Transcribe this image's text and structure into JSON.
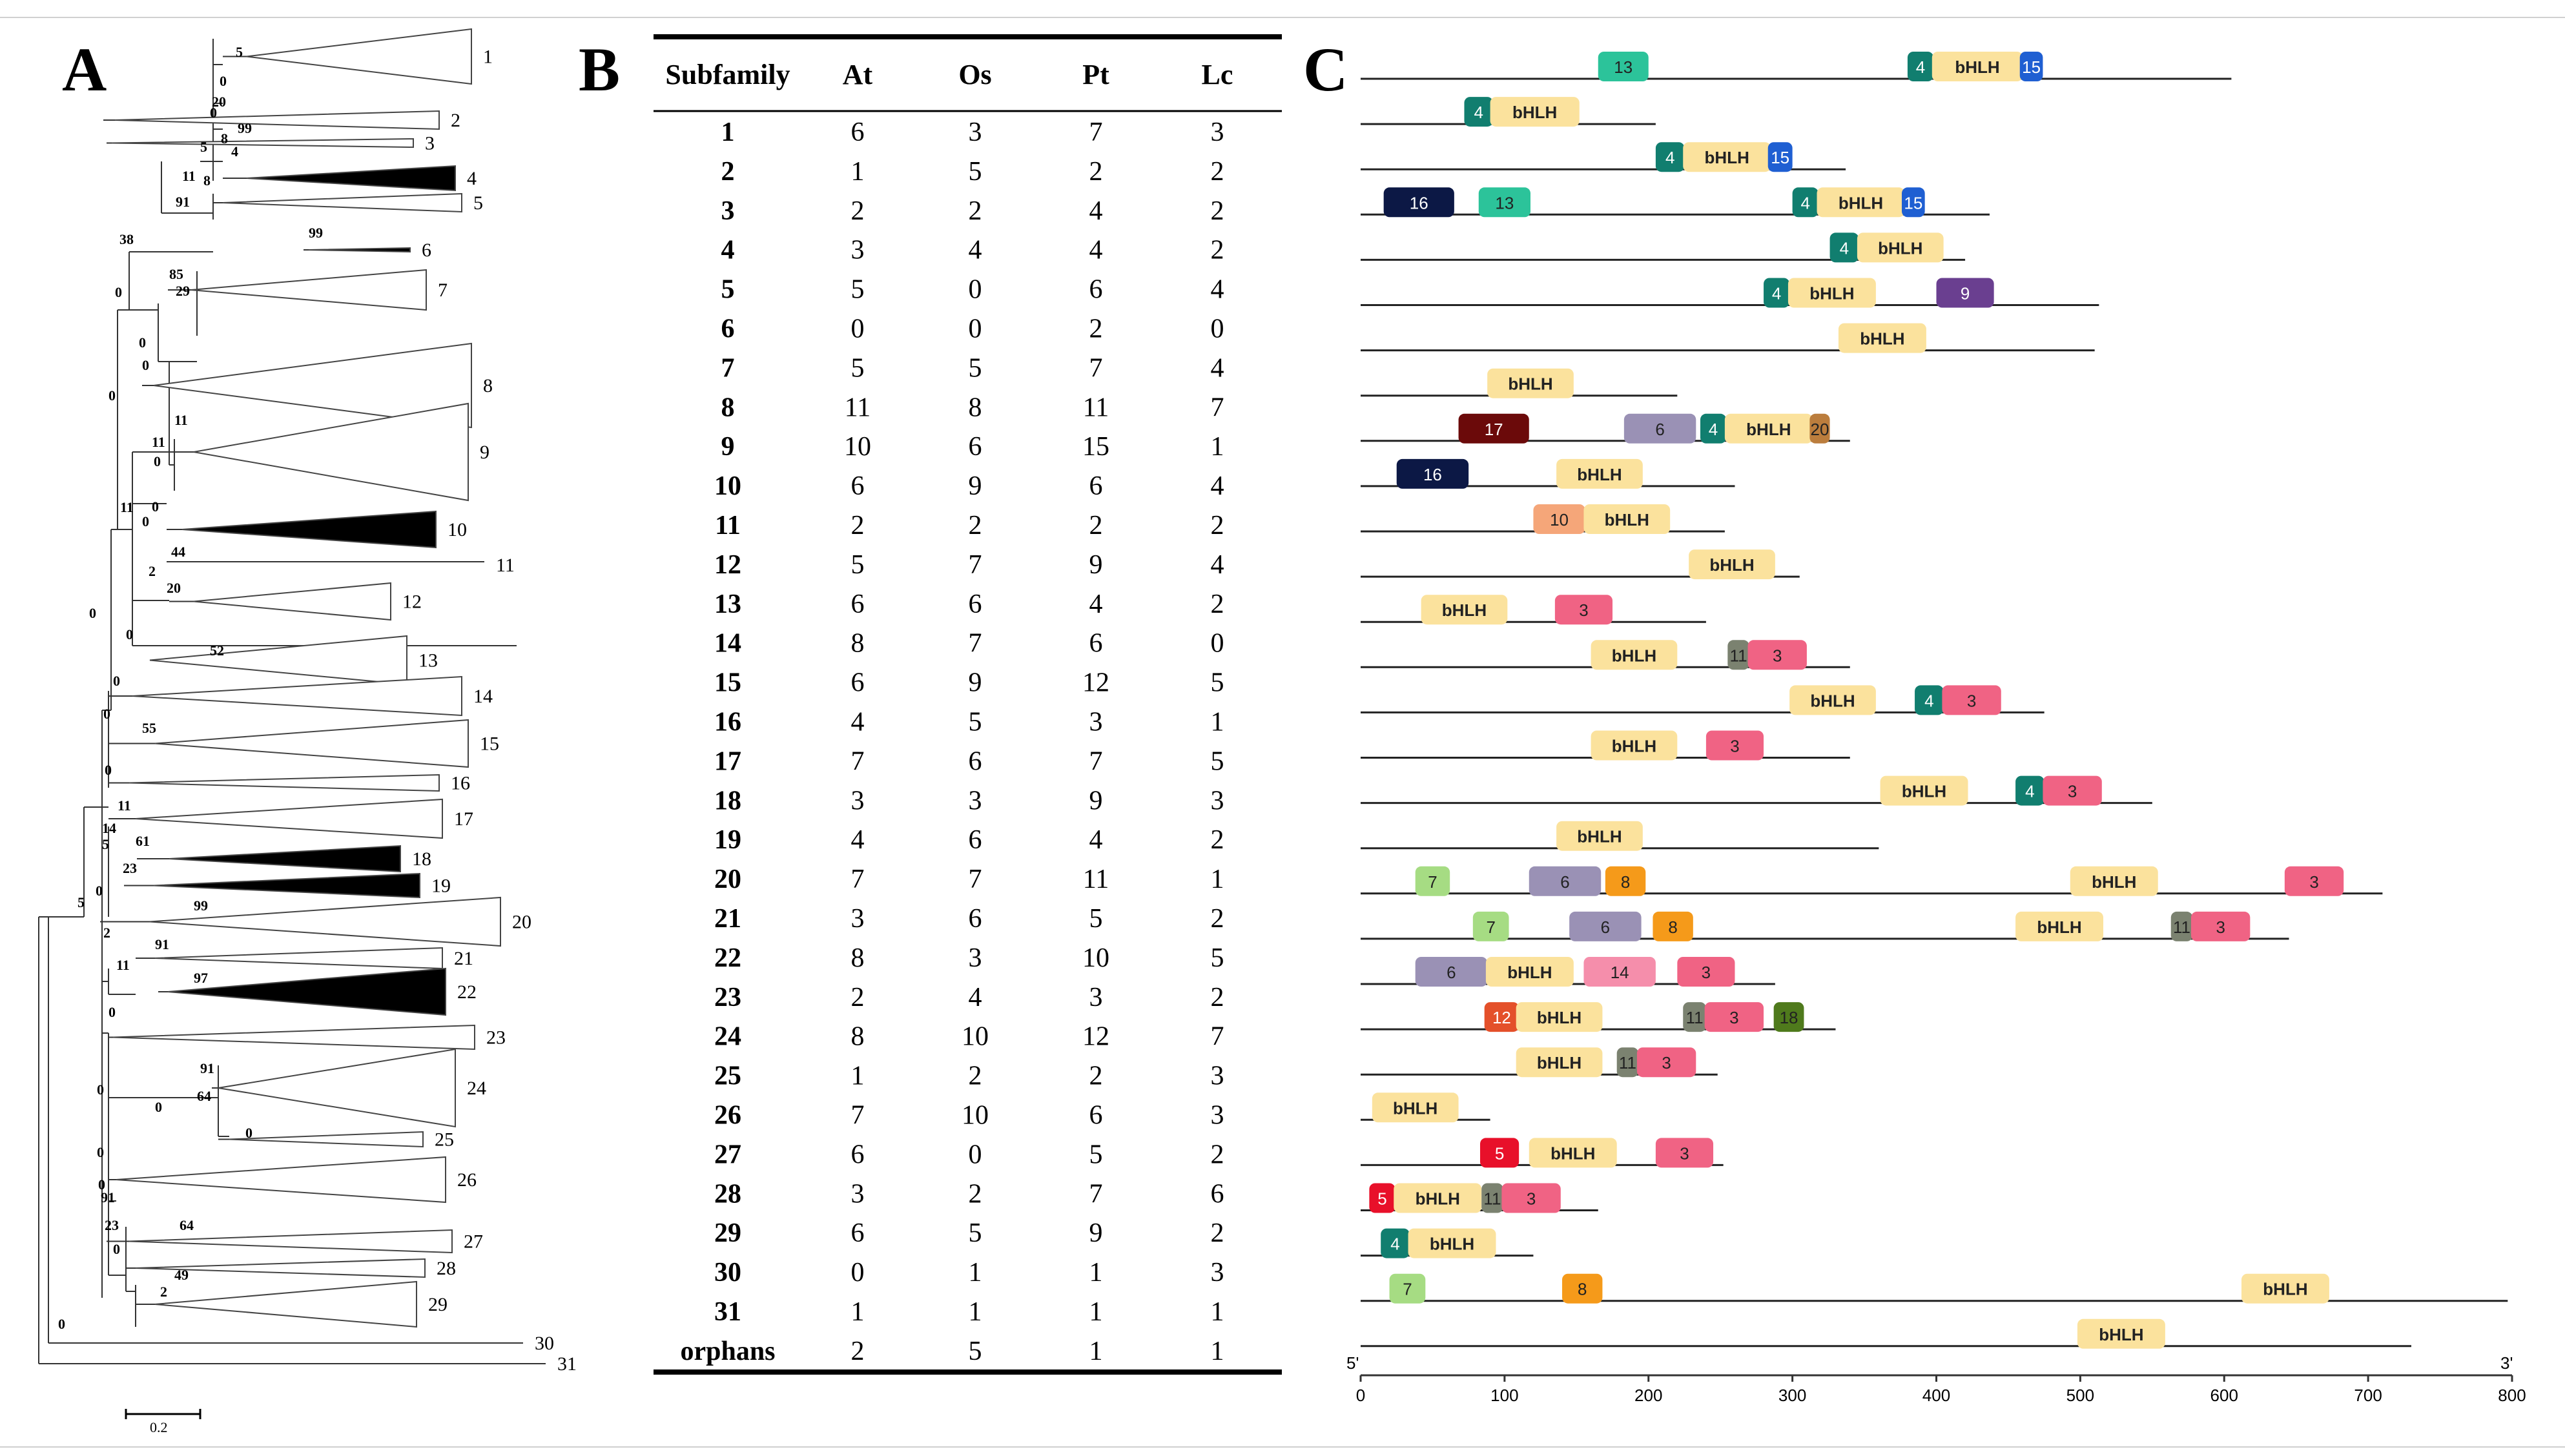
{
  "panels": {
    "a": "A",
    "b": "B",
    "c": "C"
  },
  "tree": {
    "scale_label": "0.2",
    "clades": [
      {
        "label": "1",
        "shape": "triangle",
        "filled": false
      },
      {
        "label": "2",
        "shape": "triangle",
        "filled": false
      },
      {
        "label": "3",
        "shape": "triangle",
        "filled": false
      },
      {
        "label": "4",
        "shape": "triangle",
        "filled": true
      },
      {
        "label": "5",
        "shape": "triangle",
        "filled": false
      },
      {
        "label": "6",
        "shape": "triangle",
        "filled": true
      },
      {
        "label": "7",
        "shape": "triangle",
        "filled": false
      },
      {
        "label": "8",
        "shape": "triangle",
        "filled": false
      },
      {
        "label": "9",
        "shape": "triangle",
        "filled": false
      },
      {
        "label": "10",
        "shape": "triangle",
        "filled": true
      },
      {
        "label": "11",
        "shape": "line",
        "filled": false
      },
      {
        "label": "12",
        "shape": "triangle",
        "filled": false
      },
      {
        "label": "13",
        "shape": "triangle",
        "filled": false
      },
      {
        "label": "14",
        "shape": "triangle",
        "filled": false
      },
      {
        "label": "15",
        "shape": "triangle",
        "filled": false
      },
      {
        "label": "16",
        "shape": "triangle",
        "filled": false
      },
      {
        "label": "17",
        "shape": "triangle",
        "filled": false
      },
      {
        "label": "18",
        "shape": "triangle",
        "filled": true
      },
      {
        "label": "19",
        "shape": "triangle",
        "filled": true
      },
      {
        "label": "20",
        "shape": "triangle",
        "filled": false
      },
      {
        "label": "21",
        "shape": "triangle",
        "filled": false
      },
      {
        "label": "22",
        "shape": "triangle",
        "filled": true
      },
      {
        "label": "23",
        "shape": "triangle",
        "filled": false
      },
      {
        "label": "24",
        "shape": "triangle",
        "filled": false
      },
      {
        "label": "25",
        "shape": "triangle",
        "filled": false
      },
      {
        "label": "26",
        "shape": "triangle",
        "filled": false
      },
      {
        "label": "27",
        "shape": "triangle",
        "filled": false
      },
      {
        "label": "28",
        "shape": "triangle",
        "filled": false
      },
      {
        "label": "29",
        "shape": "triangle",
        "filled": false
      },
      {
        "label": "30",
        "shape": "line",
        "filled": false
      },
      {
        "label": "31",
        "shape": "line",
        "filled": false
      }
    ],
    "bootstrap_values": [
      "5",
      "0",
      "20",
      "0",
      "99",
      "5",
      "8",
      "4",
      "11",
      "8",
      "91",
      "99",
      "38",
      "85",
      "29",
      "0",
      "0",
      "0",
      "0",
      "11",
      "11",
      "0",
      "0",
      "11",
      "0",
      "44",
      "2",
      "20",
      "0",
      "0",
      "52",
      "0",
      "0",
      "55",
      "0",
      "11",
      "14",
      "5",
      "61",
      "23",
      "0",
      "99",
      "2",
      "91",
      "11",
      "97",
      "5",
      "0",
      "0",
      "91",
      "64",
      "0",
      "0",
      "0",
      "0",
      "91",
      "23",
      "64",
      "0",
      "49",
      "2",
      "0"
    ]
  },
  "table": {
    "headers": [
      "Subfamily",
      "At",
      "Os",
      "Pt",
      "Lc"
    ],
    "rows": [
      [
        "1",
        "6",
        "3",
        "7",
        "3"
      ],
      [
        "2",
        "1",
        "5",
        "2",
        "2"
      ],
      [
        "3",
        "2",
        "2",
        "4",
        "2"
      ],
      [
        "4",
        "3",
        "4",
        "4",
        "2"
      ],
      [
        "5",
        "5",
        "0",
        "6",
        "4"
      ],
      [
        "6",
        "0",
        "0",
        "2",
        "0"
      ],
      [
        "7",
        "5",
        "5",
        "7",
        "4"
      ],
      [
        "8",
        "11",
        "8",
        "11",
        "7"
      ],
      [
        "9",
        "10",
        "6",
        "15",
        "1"
      ],
      [
        "10",
        "6",
        "9",
        "6",
        "4"
      ],
      [
        "11",
        "2",
        "2",
        "2",
        "2"
      ],
      [
        "12",
        "5",
        "7",
        "9",
        "4"
      ],
      [
        "13",
        "6",
        "6",
        "4",
        "2"
      ],
      [
        "14",
        "8",
        "7",
        "6",
        "0"
      ],
      [
        "15",
        "6",
        "9",
        "12",
        "5"
      ],
      [
        "16",
        "4",
        "5",
        "3",
        "1"
      ],
      [
        "17",
        "7",
        "6",
        "7",
        "5"
      ],
      [
        "18",
        "3",
        "3",
        "9",
        "3"
      ],
      [
        "19",
        "4",
        "6",
        "4",
        "2"
      ],
      [
        "20",
        "7",
        "7",
        "11",
        "1"
      ],
      [
        "21",
        "3",
        "6",
        "5",
        "2"
      ],
      [
        "22",
        "8",
        "3",
        "10",
        "5"
      ],
      [
        "23",
        "2",
        "4",
        "3",
        "2"
      ],
      [
        "24",
        "8",
        "10",
        "12",
        "7"
      ],
      [
        "25",
        "1",
        "2",
        "2",
        "3"
      ],
      [
        "26",
        "7",
        "10",
        "6",
        "3"
      ],
      [
        "27",
        "6",
        "0",
        "5",
        "2"
      ],
      [
        "28",
        "3",
        "2",
        "7",
        "6"
      ],
      [
        "29",
        "6",
        "5",
        "9",
        "2"
      ],
      [
        "30",
        "0",
        "1",
        "1",
        "3"
      ],
      [
        "31",
        "1",
        "1",
        "1",
        "1"
      ],
      [
        "orphans",
        "2",
        "5",
        "1",
        "1"
      ]
    ]
  },
  "motif_colors": {
    "bHLH": "#fbe29d",
    "3": "#f06384",
    "4": "#117e6f",
    "5": "#e8102a",
    "6": "#9a91b5",
    "7": "#a6dc83",
    "8": "#f59a1a",
    "9": "#6a3f90",
    "10": "#f5a679",
    "11": "#7b8270",
    "12": "#e4502a",
    "13": "#2cc39a",
    "14": "#f58eab",
    "15": "#1f5fd2",
    "16": "#0c1845",
    "17": "#6b0a0a",
    "18": "#4f7a1c",
    "20": "#bb7d3d"
  },
  "motif_chart": {
    "axis": {
      "min": 0,
      "max": 800,
      "ticks": [
        "0",
        "100",
        "200",
        "300",
        "400",
        "500",
        "600",
        "700",
        "800"
      ],
      "left_label": "5'",
      "right_label": "3'"
    },
    "proteins": [
      {
        "length": 605,
        "motifs": [
          {
            "name": "13",
            "start": 165,
            "end": 200
          },
          {
            "name": "4",
            "start": 380,
            "end": 398
          },
          {
            "name": "bHLH",
            "start": 397,
            "end": 460
          },
          {
            "name": "15",
            "start": 458,
            "end": 474
          }
        ]
      },
      {
        "length": 205,
        "motifs": [
          {
            "name": "4",
            "start": 72,
            "end": 92
          },
          {
            "name": "bHLH",
            "start": 90,
            "end": 152
          }
        ]
      },
      {
        "length": 337,
        "motifs": [
          {
            "name": "4",
            "start": 205,
            "end": 225
          },
          {
            "name": "bHLH",
            "start": 224,
            "end": 285
          },
          {
            "name": "15",
            "start": 283,
            "end": 300
          }
        ]
      },
      {
        "length": 437,
        "motifs": [
          {
            "name": "16",
            "start": 16,
            "end": 65
          },
          {
            "name": "13",
            "start": 82,
            "end": 118
          },
          {
            "name": "4",
            "start": 300,
            "end": 318
          },
          {
            "name": "bHLH",
            "start": 317,
            "end": 378
          },
          {
            "name": "15",
            "start": 376,
            "end": 392
          }
        ]
      },
      {
        "length": 420,
        "motifs": [
          {
            "name": "4",
            "start": 326,
            "end": 346
          },
          {
            "name": "bHLH",
            "start": 345,
            "end": 405
          }
        ]
      },
      {
        "length": 513,
        "motifs": [
          {
            "name": "4",
            "start": 280,
            "end": 298
          },
          {
            "name": "bHLH",
            "start": 297,
            "end": 358
          },
          {
            "name": "9",
            "start": 400,
            "end": 440
          }
        ]
      },
      {
        "length": 510,
        "motifs": [
          {
            "name": "bHLH",
            "start": 332,
            "end": 393
          }
        ]
      },
      {
        "length": 220,
        "motifs": [
          {
            "name": "bHLH",
            "start": 88,
            "end": 148
          }
        ]
      },
      {
        "length": 340,
        "motifs": [
          {
            "name": "17",
            "start": 68,
            "end": 117
          },
          {
            "name": "6",
            "start": 183,
            "end": 233
          },
          {
            "name": "4",
            "start": 236,
            "end": 254
          },
          {
            "name": "bHLH",
            "start": 253,
            "end": 314
          },
          {
            "name": "20",
            "start": 312,
            "end": 326
          }
        ]
      },
      {
        "length": 260,
        "motifs": [
          {
            "name": "16",
            "start": 25,
            "end": 75
          },
          {
            "name": "bHLH",
            "start": 136,
            "end": 196
          }
        ]
      },
      {
        "length": 253,
        "motifs": [
          {
            "name": "10",
            "start": 120,
            "end": 156
          },
          {
            "name": "bHLH",
            "start": 155,
            "end": 215
          }
        ]
      },
      {
        "length": 305,
        "motifs": [
          {
            "name": "bHLH",
            "start": 228,
            "end": 288
          }
        ]
      },
      {
        "length": 240,
        "motifs": [
          {
            "name": "bHLH",
            "start": 42,
            "end": 102
          },
          {
            "name": "3",
            "start": 135,
            "end": 175
          }
        ]
      },
      {
        "length": 340,
        "motifs": [
          {
            "name": "bHLH",
            "start": 160,
            "end": 220
          },
          {
            "name": "11",
            "start": 255,
            "end": 270
          },
          {
            "name": "3",
            "start": 269,
            "end": 310
          }
        ]
      },
      {
        "length": 475,
        "motifs": [
          {
            "name": "bHLH",
            "start": 298,
            "end": 358
          },
          {
            "name": "4",
            "start": 385,
            "end": 405
          },
          {
            "name": "3",
            "start": 404,
            "end": 445
          }
        ]
      },
      {
        "length": 340,
        "motifs": [
          {
            "name": "bHLH",
            "start": 160,
            "end": 220
          },
          {
            "name": "3",
            "start": 240,
            "end": 280
          }
        ]
      },
      {
        "length": 550,
        "motifs": [
          {
            "name": "bHLH",
            "start": 361,
            "end": 422
          },
          {
            "name": "4",
            "start": 455,
            "end": 475
          },
          {
            "name": "3",
            "start": 474,
            "end": 515
          }
        ]
      },
      {
        "length": 360,
        "motifs": [
          {
            "name": "bHLH",
            "start": 136,
            "end": 196
          }
        ]
      },
      {
        "length": 710,
        "motifs": [
          {
            "name": "7",
            "start": 38,
            "end": 62
          },
          {
            "name": "6",
            "start": 117,
            "end": 167
          },
          {
            "name": "8",
            "start": 170,
            "end": 198
          },
          {
            "name": "bHLH",
            "start": 493,
            "end": 554
          },
          {
            "name": "3",
            "start": 642,
            "end": 683
          }
        ]
      },
      {
        "length": 645,
        "motifs": [
          {
            "name": "7",
            "start": 78,
            "end": 103
          },
          {
            "name": "6",
            "start": 145,
            "end": 195
          },
          {
            "name": "8",
            "start": 203,
            "end": 231
          },
          {
            "name": "bHLH",
            "start": 455,
            "end": 516
          },
          {
            "name": "11",
            "start": 563,
            "end": 578
          },
          {
            "name": "3",
            "start": 577,
            "end": 618
          }
        ]
      },
      {
        "length": 288,
        "motifs": [
          {
            "name": "6",
            "start": 38,
            "end": 88
          },
          {
            "name": "bHLH",
            "start": 87,
            "end": 148
          },
          {
            "name": "14",
            "start": 155,
            "end": 205
          },
          {
            "name": "3",
            "start": 220,
            "end": 260
          }
        ]
      },
      {
        "length": 330,
        "motifs": [
          {
            "name": "12",
            "start": 86,
            "end": 110
          },
          {
            "name": "bHLH",
            "start": 108,
            "end": 168
          },
          {
            "name": "11",
            "start": 224,
            "end": 240
          },
          {
            "name": "3",
            "start": 239,
            "end": 280
          },
          {
            "name": "18",
            "start": 287,
            "end": 308
          }
        ]
      },
      {
        "length": 248,
        "motifs": [
          {
            "name": "bHLH",
            "start": 108,
            "end": 168
          },
          {
            "name": "11",
            "start": 178,
            "end": 193
          },
          {
            "name": "3",
            "start": 192,
            "end": 233
          }
        ]
      },
      {
        "length": 90,
        "motifs": [
          {
            "name": "bHLH",
            "start": 8,
            "end": 68
          }
        ]
      },
      {
        "length": 252,
        "motifs": [
          {
            "name": "5",
            "start": 83,
            "end": 110
          },
          {
            "name": "bHLH",
            "start": 117,
            "end": 178
          },
          {
            "name": "3",
            "start": 205,
            "end": 245
          }
        ]
      },
      {
        "length": 165,
        "motifs": [
          {
            "name": "5",
            "start": 6,
            "end": 24
          },
          {
            "name": "bHLH",
            "start": 23,
            "end": 84
          },
          {
            "name": "11",
            "start": 84,
            "end": 99
          },
          {
            "name": "3",
            "start": 98,
            "end": 139
          }
        ]
      },
      {
        "length": 120,
        "motifs": [
          {
            "name": "4",
            "start": 14,
            "end": 34
          },
          {
            "name": "bHLH",
            "start": 33,
            "end": 94
          }
        ]
      },
      {
        "length": 797,
        "motifs": [
          {
            "name": "7",
            "start": 20,
            "end": 45
          },
          {
            "name": "8",
            "start": 140,
            "end": 168
          },
          {
            "name": "bHLH",
            "start": 612,
            "end": 673
          }
        ]
      },
      {
        "length": 730,
        "motifs": [
          {
            "name": "bHLH",
            "start": 498,
            "end": 559
          }
        ]
      }
    ]
  }
}
